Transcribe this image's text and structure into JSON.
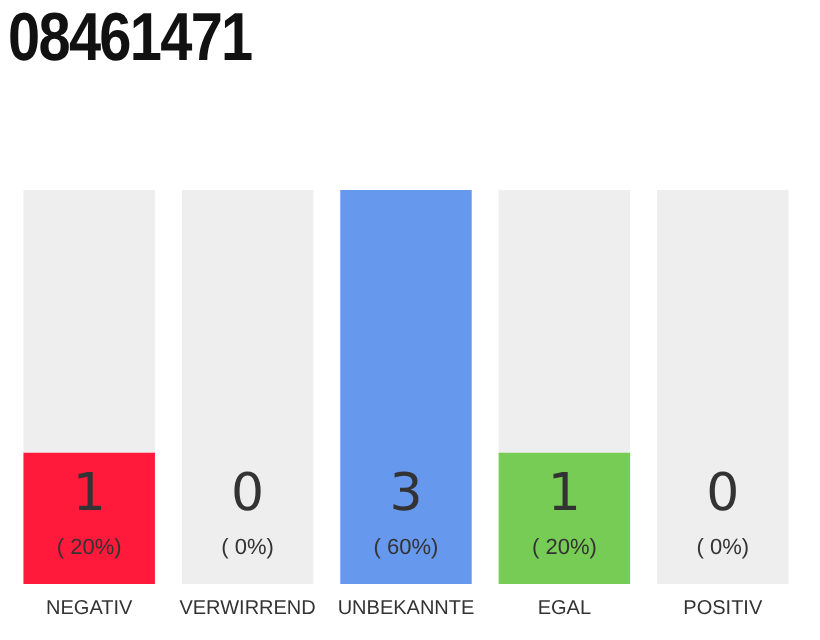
{
  "chart_data": {
    "type": "bar",
    "title": "08461471",
    "categories": [
      "NEGATIV",
      "VERWIRREND",
      "UNBEKANNTE",
      "EGAL",
      "POSITIV"
    ],
    "series": [
      {
        "color": "#eeeeee",
        "values": [
          3,
          3,
          null,
          3,
          3
        ]
      },
      {
        "colors": [
          "#ff1a3c",
          "#999999",
          "#6699ee",
          "#77cc55",
          "#999999"
        ],
        "values": [
          1,
          0,
          3,
          1,
          0
        ],
        "value_labels": [
          "1\n( 20%)",
          "0\n( 0%)",
          "3\n( 60%)",
          "1\n( 20%)",
          "0\n( 0%)"
        ]
      }
    ],
    "ylim": [
      0,
      3
    ],
    "grid": false,
    "legend": false
  }
}
